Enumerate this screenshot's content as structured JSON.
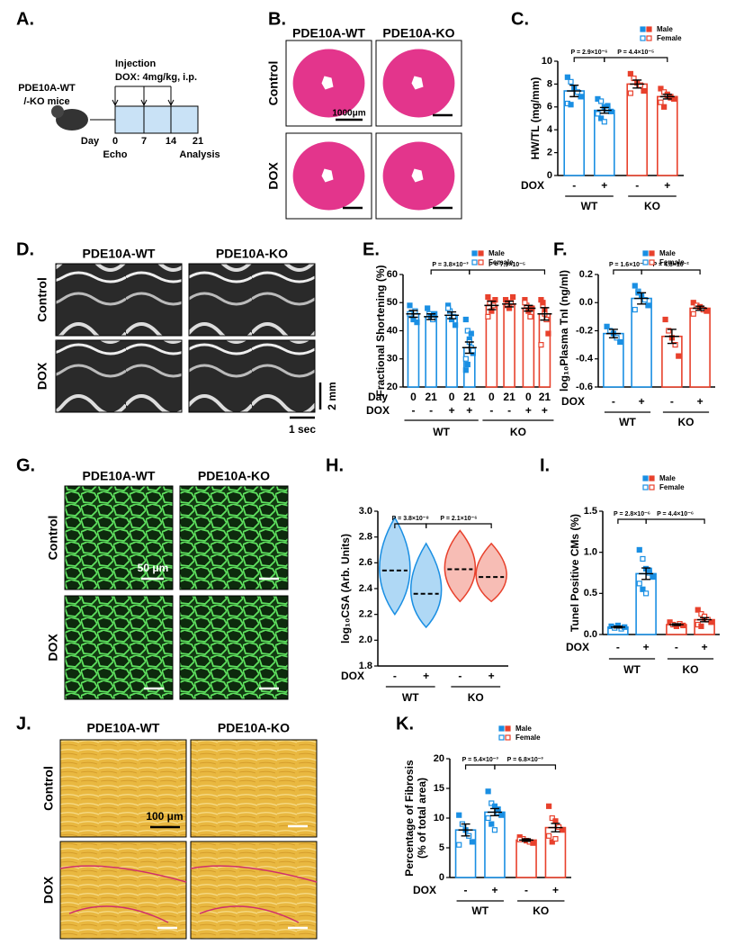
{
  "panel_labels": [
    "A.",
    "B.",
    "C.",
    "D.",
    "E.",
    "F.",
    "G.",
    "H.",
    "I.",
    "J.",
    "K."
  ],
  "timeline": {
    "mice": [
      "PDE10A-WT",
      "/-KO mice"
    ],
    "injection": "Injection",
    "dose": "DOX: 4mg/kg, i.p.",
    "day_label": "Day",
    "days": [
      "0",
      "7",
      "14",
      "21"
    ],
    "echo": "Echo",
    "analysis": "Analysis"
  },
  "images": [
    {
      "columns": [
        "PDE10A-WT",
        "PDE10A-KO"
      ],
      "rows": [
        "Control",
        "DOX"
      ],
      "scale": "1000μm"
    },
    {
      "columns": [
        "PDE10A-WT",
        "PDE10A-KO"
      ],
      "rows": [
        "Control",
        "DOX"
      ],
      "scale_y": "2 mm",
      "scale_x": "1 sec"
    },
    {
      "columns": [
        "PDE10A-WT",
        "PDE10A-KO"
      ],
      "rows": [
        "Control",
        "DOX"
      ],
      "scale": "50 μm"
    },
    {
      "columns": [
        "PDE10A-WT",
        "PDE10A-KO"
      ],
      "rows": [
        "Control",
        "DOX"
      ],
      "scale": "100 μm"
    }
  ],
  "chart_data": [
    {
      "type": "bar",
      "ylabel": "HW/TL (mg/mm)",
      "ylim": [
        0,
        10
      ],
      "yticks": [
        0,
        2,
        4,
        6,
        8,
        10
      ],
      "category_label": "DOX",
      "categories": [
        "-",
        "+",
        "-",
        "+"
      ],
      "groups": [
        "WT",
        "KO"
      ],
      "colors": [
        "#1a8fe3",
        "#1a8fe3",
        "#e8412c",
        "#e8412c"
      ],
      "values": [
        7.4,
        5.7,
        8.0,
        6.9
      ],
      "errors": [
        0.5,
        0.25,
        0.35,
        0.2
      ],
      "points": [
        [
          8.6,
          8.2,
          7.6,
          7.3,
          6.9,
          6.3,
          6.2
        ],
        [
          6.7,
          6.5,
          6.0,
          5.8,
          5.6,
          5.4,
          5.0,
          4.7,
          6.1
        ],
        [
          8.9,
          8.5,
          8.1,
          7.9,
          7.4,
          7.2
        ],
        [
          7.6,
          7.3,
          7.1,
          6.9,
          6.7,
          6.4,
          6.0,
          7.0,
          6.8
        ]
      ],
      "annotations": [
        "P = 2.9×10⁻⁶",
        "P = 4.4×10⁻⁵"
      ],
      "legend": [
        "Male",
        "Female"
      ]
    },
    {
      "type": "bar",
      "ylabel": "Fractional Shortening (%)",
      "ylim": [
        20,
        60
      ],
      "yticks": [
        20,
        30,
        40,
        50,
        60
      ],
      "day_label": "Day",
      "days": [
        "0",
        "21",
        "0",
        "21",
        "0",
        "21",
        "0",
        "21"
      ],
      "category_label": "DOX",
      "categories": [
        "-",
        "-",
        "+",
        "+",
        "-",
        "-",
        "+",
        "+"
      ],
      "groups": [
        "WT",
        "KO"
      ],
      "colors": [
        "#1a8fe3",
        "#1a8fe3",
        "#1a8fe3",
        "#1a8fe3",
        "#e8412c",
        "#e8412c",
        "#e8412c",
        "#e8412c"
      ],
      "values": [
        46,
        45,
        45.5,
        34,
        49,
        49.5,
        48,
        46
      ],
      "errors": [
        1.2,
        1.0,
        1.2,
        2.0,
        1.5,
        1.0,
        1.0,
        2.2
      ],
      "points": [
        [
          49,
          46,
          44,
          47,
          43,
          46
        ],
        [
          48,
          46,
          45,
          44,
          46
        ],
        [
          49,
          47,
          44,
          45,
          42,
          48
        ],
        [
          44,
          40,
          37,
          34,
          32,
          30,
          28,
          36,
          39,
          33,
          26
        ],
        [
          52,
          50,
          47,
          49,
          51,
          45
        ],
        [
          51,
          49,
          48,
          50,
          52
        ],
        [
          51,
          49,
          47,
          45,
          48,
          50
        ],
        [
          51,
          49,
          47,
          44,
          39,
          35,
          50,
          46
        ]
      ],
      "annotations": [
        "P = 3.8×10⁻³",
        "P = 7.9×10⁻⁵"
      ],
      "legend": [
        "Male",
        "Female"
      ]
    },
    {
      "type": "bar",
      "ylabel": "log₁₀Plasma TnI (ng/ml)",
      "ylim": [
        -0.6,
        0.2
      ],
      "yticks": [
        -0.6,
        -0.4,
        -0.2,
        {
          "value": 0,
          "label": "0.0"
        },
        0.2
      ],
      "category_label": "DOX",
      "categories": [
        "-",
        "+",
        "-",
        "+"
      ],
      "groups": [
        "WT",
        "KO"
      ],
      "colors": [
        "#1a8fe3",
        "#1a8fe3",
        "#e8412c",
        "#e8412c"
      ],
      "values": [
        -0.22,
        0.03,
        -0.24,
        -0.04
      ],
      "errors": [
        0.03,
        0.04,
        0.05,
        0.015
      ],
      "points": [
        [
          -0.17,
          -0.2,
          -0.22,
          -0.25,
          -0.28
        ],
        [
          0.12,
          0.08,
          0.05,
          0.02,
          -0.02,
          -0.05,
          0.07
        ],
        [
          -0.12,
          -0.2,
          -0.25,
          -0.3,
          -0.38
        ],
        [
          0.0,
          -0.02,
          -0.03,
          -0.05,
          -0.06,
          -0.08
        ]
      ],
      "annotations": [
        "P = 1.6×10⁻⁵",
        "P = 4.8×10⁻²"
      ],
      "legend": [
        "Male",
        "Female"
      ]
    },
    {
      "type": "violin",
      "ylabel": "log₁₀CSA (Arb. Units)",
      "ylim": [
        1.8,
        3.0
      ],
      "yticks": [
        1.8,
        {
          "value": 2,
          "label": "2.0"
        },
        2.2,
        2.4,
        2.6,
        2.8,
        {
          "value": 3,
          "label": "3.0"
        }
      ],
      "category_label": "DOX",
      "categories": [
        "-",
        "+",
        "-",
        "+"
      ],
      "groups": [
        "WT",
        "KO"
      ],
      "colors": [
        "#1a8fe3",
        "#1a8fe3",
        "#e8412c",
        "#e8412c"
      ],
      "values": [
        2.54,
        2.36,
        2.55,
        2.49
      ],
      "ranges": [
        [
          2.2,
          2.95
        ],
        [
          2.1,
          2.75
        ],
        [
          2.3,
          2.85
        ],
        [
          2.3,
          2.75
        ]
      ],
      "annotations": [
        "P = 3.8×10⁻⁸",
        "P = 2.1×10⁻⁶"
      ]
    },
    {
      "type": "bar",
      "ylabel": "Tunel Positive CMs (%)",
      "ylim": [
        0,
        1.5
      ],
      "yticks": [
        {
          "value": 0,
          "label": "0.0"
        },
        0.5,
        {
          "value": 1,
          "label": "1.0"
        },
        1.5
      ],
      "category_label": "DOX",
      "categories": [
        "-",
        "+",
        "-",
        "+"
      ],
      "groups": [
        "WT",
        "KO"
      ],
      "colors": [
        "#1a8fe3",
        "#1a8fe3",
        "#e8412c",
        "#e8412c"
      ],
      "values": [
        0.09,
        0.74,
        0.12,
        0.18
      ],
      "errors": [
        0.01,
        0.07,
        0.01,
        0.025
      ],
      "points": [
        [
          0.1,
          0.08,
          0.11,
          0.07,
          0.09
        ],
        [
          1.03,
          0.92,
          0.8,
          0.75,
          0.7,
          0.62,
          0.55,
          0.5,
          0.78
        ],
        [
          0.15,
          0.12,
          0.1,
          0.13,
          0.11
        ],
        [
          0.3,
          0.25,
          0.2,
          0.18,
          0.15,
          0.12,
          0.1,
          0.22
        ]
      ],
      "annotations": [
        "P = 2.8×10⁻⁶",
        "P = 4.4×10⁻⁶"
      ],
      "legend": [
        "Male",
        "Female"
      ]
    },
    {
      "type": "bar",
      "ylabel": [
        "Percentage of Fibrosis",
        "(% of total area)"
      ],
      "ylim": [
        0,
        20
      ],
      "yticks": [
        0,
        5,
        10,
        15,
        20
      ],
      "category_label": "DOX",
      "categories": [
        "-",
        "+",
        "-",
        "+"
      ],
      "groups": [
        "WT",
        "KO"
      ],
      "colors": [
        "#1a8fe3",
        "#1a8fe3",
        "#e8412c",
        "#e8412c"
      ],
      "values": [
        8.0,
        11.0,
        6.3,
        8.4
      ],
      "errors": [
        1.0,
        0.6,
        0.2,
        0.7
      ],
      "points": [
        [
          10.5,
          9,
          8,
          7,
          6,
          5.5
        ],
        [
          14.5,
          12.5,
          12,
          11,
          10.5,
          10,
          9,
          8,
          11.5
        ],
        [
          6.8,
          6.5,
          6.2,
          6,
          5.8,
          6.4
        ],
        [
          12,
          10,
          9.5,
          8.5,
          8,
          7,
          6,
          6.5
        ]
      ],
      "annotations": [
        "P = 5.4×10⁻³",
        "P = 6.8×10⁻³"
      ],
      "legend": [
        "Male",
        "Female"
      ]
    }
  ]
}
